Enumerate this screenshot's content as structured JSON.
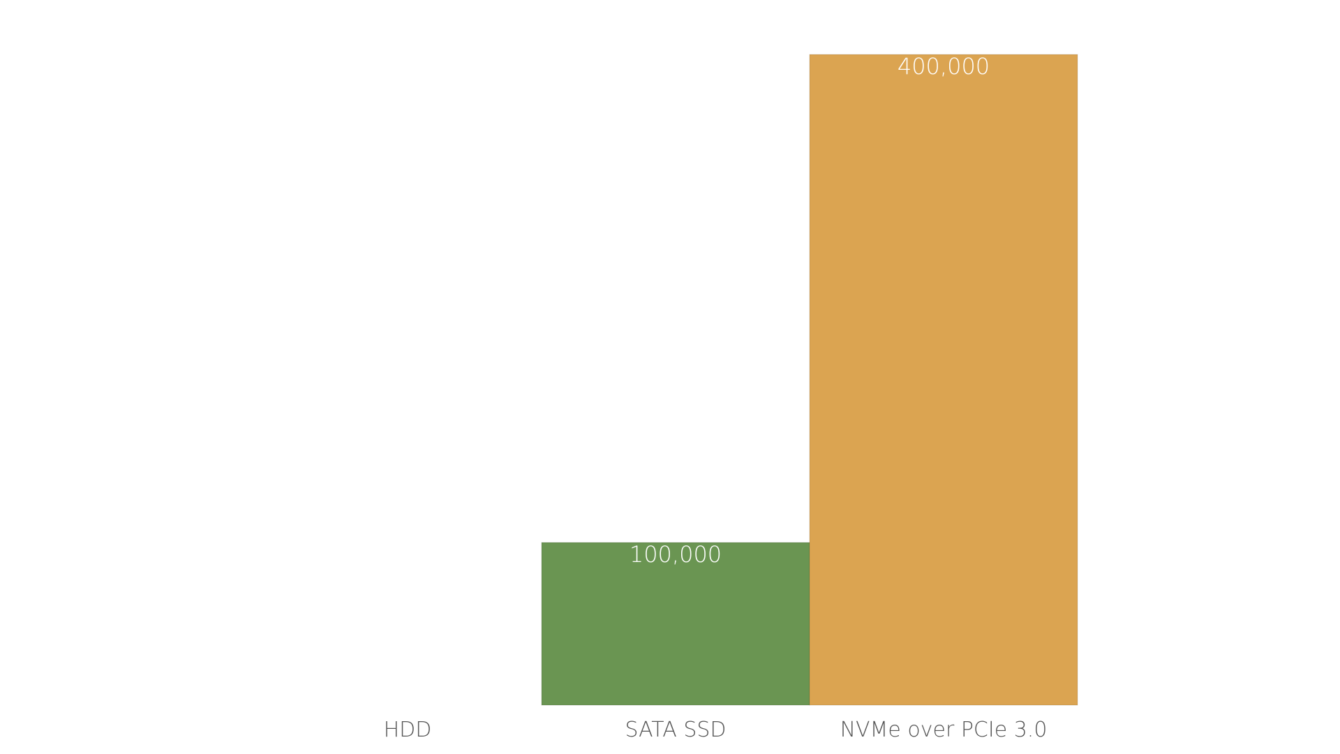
{
  "chart_data": {
    "type": "bar",
    "categories": [
      "HDD",
      "SATA SSD",
      "NVMe over PCIe 3.0"
    ],
    "values": [
      0,
      100000,
      400000
    ],
    "value_labels": [
      "",
      "100,000",
      "400,000"
    ],
    "colors": [
      "#9e9e9e",
      "#6a9552",
      "#dba451"
    ],
    "ylim": [
      0,
      400000
    ],
    "grid": false,
    "legend": "none",
    "xlabel": "",
    "ylabel": "",
    "title": ""
  }
}
